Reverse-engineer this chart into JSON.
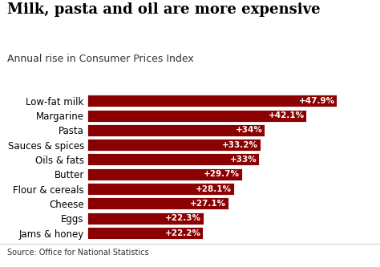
{
  "title": "Milk, pasta and oil are more expensive",
  "subtitle": "Annual rise in Consumer Prices Index",
  "source": "Source: Office for National Statistics",
  "categories": [
    "Jams & honey",
    "Eggs",
    "Cheese",
    "Flour & cereals",
    "Butter",
    "Oils & fats",
    "Sauces & spices",
    "Pasta",
    "Margarine",
    "Low-fat milk"
  ],
  "values": [
    22.2,
    22.3,
    27.1,
    28.1,
    29.7,
    33.0,
    33.2,
    34.0,
    42.1,
    47.9
  ],
  "labels": [
    "+22.2%",
    "+22.3%",
    "+27.1%",
    "+28.1%",
    "+29.7%",
    "+33%",
    "+33.2%",
    "+34%",
    "+42.1%",
    "+47.9%"
  ],
  "bar_color": "#8B0000",
  "bar_edge_color": "#ffffff",
  "label_color": "#ffffff",
  "background_color": "#ffffff",
  "title_fontsize": 13,
  "subtitle_fontsize": 9,
  "label_fontsize": 7.5,
  "ytick_fontsize": 8.5,
  "source_fontsize": 7,
  "xlim": [
    0,
    54
  ]
}
